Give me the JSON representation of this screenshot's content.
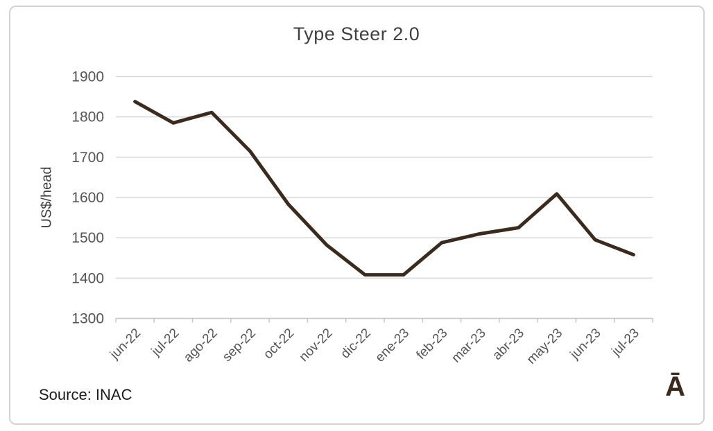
{
  "chart_data": {
    "type": "line",
    "title": "Type Steer 2.0",
    "xlabel": "",
    "ylabel": "US$/head",
    "categories": [
      "jun-22",
      "jul-22",
      "ago-22",
      "sep-22",
      "oct-22",
      "nov-22",
      "dic-22",
      "ene-23",
      "feb-23",
      "mar-23",
      "abr-23",
      "may-23",
      "jun-23",
      "jul-23"
    ],
    "values": [
      1838,
      1785,
      1811,
      1715,
      1583,
      1482,
      1408,
      1408,
      1488,
      1510,
      1525,
      1609,
      1495,
      1458
    ],
    "ylim": [
      1300,
      1900
    ],
    "ytick_step": 100,
    "grid": true,
    "legend": "none",
    "colors": {
      "line": "#3b2a1e",
      "gridline": "#d9d9d9",
      "axis_line": "#c8c4c4",
      "tick_label": "#545454",
      "title": "#404040"
    }
  },
  "footer": {
    "source_label": "Source: INAC"
  },
  "branding": {
    "logo_glyph": "Ā"
  }
}
